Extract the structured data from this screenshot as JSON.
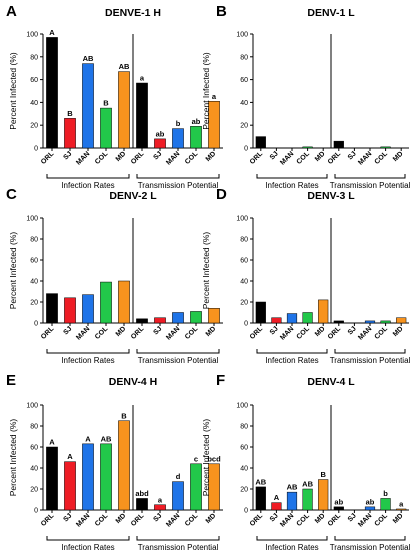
{
  "figure": {
    "x_groups": [
      "Infection Rates",
      "Transmission Potential"
    ],
    "colors": [
      "#000000",
      "#ee1c25",
      "#1f74e8",
      "#22c84a",
      "#f7931e"
    ]
  },
  "chart_data": [
    {
      "type": "bar",
      "panel_letter": "A",
      "title": "DENVE-1 H",
      "ylabel": "Percent Infected (%)",
      "ylim": [
        0,
        100
      ],
      "yticks": [
        "0",
        "20",
        "40",
        "60",
        "80",
        "100"
      ],
      "categories": [
        "ORL",
        "SJ",
        "MAN",
        "COL",
        "MD"
      ],
      "series": [
        {
          "group": "Infection Rates",
          "values": [
            97,
            26,
            74,
            35,
            67
          ],
          "letters": [
            "A",
            "B",
            "AB",
            "B",
            "AB"
          ]
        },
        {
          "group": "Transmission Potential",
          "values": [
            57,
            8,
            17,
            19,
            41
          ],
          "letters": [
            "a",
            "ab",
            "b",
            "ab",
            "a"
          ]
        }
      ]
    },
    {
      "type": "bar",
      "panel_letter": "B",
      "title": "DENV-1 L",
      "ylabel": "Percent Infected (%)",
      "ylim": [
        0,
        100
      ],
      "yticks": [
        "0",
        "20",
        "40",
        "60",
        "80",
        "100"
      ],
      "categories": [
        "ORL",
        "SJ",
        "MAN",
        "COL",
        "MD"
      ],
      "series": [
        {
          "group": "Infection Rates",
          "values": [
            10,
            0,
            0,
            1,
            0
          ],
          "letters": [
            "",
            "",
            "",
            "",
            ""
          ]
        },
        {
          "group": "Transmission Potential",
          "values": [
            6,
            0,
            0,
            1,
            0
          ],
          "letters": [
            "",
            "",
            "",
            "",
            ""
          ]
        }
      ]
    },
    {
      "type": "bar",
      "panel_letter": "C",
      "title": "DENV-2 L",
      "ylabel": "Percent Infected (%)",
      "ylim": [
        0,
        100
      ],
      "yticks": [
        "0",
        "20",
        "40",
        "60",
        "80",
        "100"
      ],
      "categories": [
        "ORL",
        "SJ",
        "MAN",
        "COL",
        "MD"
      ],
      "series": [
        {
          "group": "Infection Rates",
          "values": [
            28,
            24,
            27,
            39,
            40
          ],
          "letters": [
            "",
            "",
            "",
            "",
            ""
          ]
        },
        {
          "group": "Transmission Potential",
          "values": [
            4,
            5,
            10,
            11,
            14
          ],
          "letters": [
            "",
            "",
            "",
            "",
            ""
          ]
        }
      ]
    },
    {
      "type": "bar",
      "panel_letter": "D",
      "title": "DENV-3 L",
      "ylabel": "Percent Infected (%)",
      "ylim": [
        0,
        100
      ],
      "yticks": [
        "0",
        "20",
        "40",
        "60",
        "80",
        "100"
      ],
      "categories": [
        "ORL",
        "SJ",
        "MAN",
        "COL",
        "MD"
      ],
      "series": [
        {
          "group": "Infection Rates",
          "values": [
            20,
            5,
            9,
            10,
            22
          ],
          "letters": [
            "",
            "",
            "",
            "",
            ""
          ]
        },
        {
          "group": "Transmission Potential",
          "values": [
            2,
            0,
            2,
            2,
            5
          ],
          "letters": [
            "",
            "",
            "",
            "",
            ""
          ]
        }
      ]
    },
    {
      "type": "bar",
      "panel_letter": "E",
      "title": "DENV-4 H",
      "ylabel": "Percent Infected (%)",
      "ylim": [
        0,
        100
      ],
      "yticks": [
        "0",
        "20",
        "40",
        "60",
        "80",
        "100"
      ],
      "categories": [
        "ORL",
        "SJ",
        "MAN",
        "COL",
        "MD"
      ],
      "series": [
        {
          "group": "Infection Rates",
          "values": [
            60,
            46,
            63,
            63,
            85
          ],
          "letters": [
            "A",
            "A",
            "A",
            "AB",
            "B"
          ]
        },
        {
          "group": "Transmission Potential",
          "values": [
            11,
            5,
            27,
            44,
            44
          ],
          "letters": [
            "abd",
            "a",
            "d",
            "c",
            "bcd"
          ]
        }
      ]
    },
    {
      "type": "bar",
      "panel_letter": "F",
      "title": "DENV-4 L",
      "ylabel": "Percent Infected (%)",
      "ylim": [
        0,
        100
      ],
      "yticks": [
        "0",
        "20",
        "40",
        "60",
        "80",
        "100"
      ],
      "categories": [
        "ORL",
        "SJ",
        "MAN",
        "COL",
        "MD"
      ],
      "series": [
        {
          "group": "Infection Rates",
          "values": [
            22,
            7,
            17,
            20,
            29
          ],
          "letters": [
            "AB",
            "A",
            "AB",
            "AB",
            "B"
          ]
        },
        {
          "group": "Transmission Potential",
          "values": [
            3,
            0,
            3,
            11,
            1
          ],
          "letters": [
            "ab",
            "",
            "ab",
            "b",
            "a"
          ]
        }
      ]
    }
  ]
}
